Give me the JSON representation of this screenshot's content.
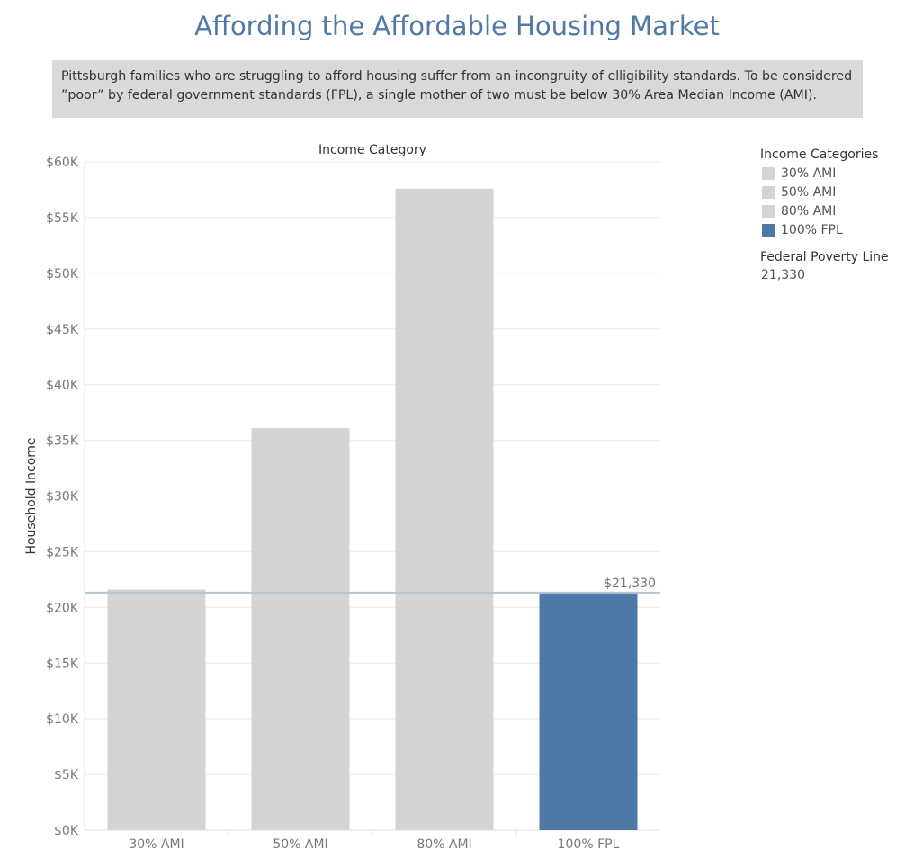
{
  "title": "Affording the Affordable Housing Market",
  "description": "Pittsburgh families who are struggling to afford housing suffer from an incongruity of elligibility standards. To be considered ”poor” by federal government standards (FPL), a single mother of two must be below 30% Area Median Income (AMI).",
  "legend": {
    "title": "Income Categories",
    "items": [
      {
        "label": "30% AMI",
        "color": "#d4d4d4"
      },
      {
        "label": "50% AMI",
        "color": "#d4d4d4"
      },
      {
        "label": "80% AMI",
        "color": "#d4d4d4"
      },
      {
        "label": "100% FPL",
        "color": "#4e79a7"
      }
    ],
    "fpl_title": "Federal Poverty Line",
    "fpl_value": "21,330"
  },
  "chart_data": {
    "type": "bar",
    "title": "Income Category",
    "ylabel": "Household Income",
    "categories": [
      "30% AMI",
      "50% AMI",
      "80% AMI",
      "100% FPL"
    ],
    "values": [
      21600,
      36100,
      57600,
      21330
    ],
    "colors": [
      "#d4d4d4",
      "#d4d4d4",
      "#d4d4d4",
      "#4e79a7"
    ],
    "ylim": [
      0,
      60000
    ],
    "yticks": [
      0,
      5000,
      10000,
      15000,
      20000,
      25000,
      30000,
      35000,
      40000,
      45000,
      50000,
      55000,
      60000
    ],
    "ytick_labels": [
      "$0K",
      "$5K",
      "$10K",
      "$15K",
      "$20K",
      "$25K",
      "$30K",
      "$35K",
      "$40K",
      "$45K",
      "$50K",
      "$55K",
      "$60K"
    ],
    "reference_line": {
      "value": 21330,
      "label": "$21,330",
      "color": "#b6c4d2"
    },
    "grid": true
  }
}
